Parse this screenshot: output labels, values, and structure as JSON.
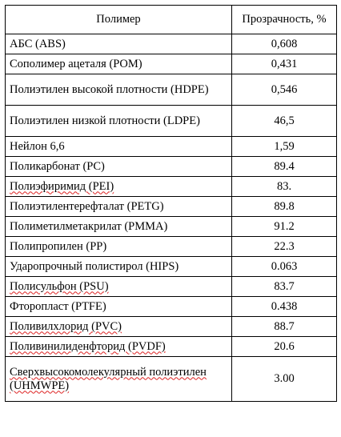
{
  "table": {
    "headers": {
      "name": "Полимер",
      "value": "Прозрачность, %"
    },
    "rows": [
      {
        "name": "АБС (ABS)",
        "value": "0,608"
      },
      {
        "name": "Сополимер ацеталя (POM)",
        "value": "0,431"
      },
      {
        "name": "Полиэтилен высокой плотности (HDPE)",
        "value": "0,546"
      },
      {
        "name": "Полиэтилен низкой плотности (LDPE)",
        "value": "46,5"
      },
      {
        "name": "Нейлон 6,6",
        "value": "1,59"
      },
      {
        "name": "Поликарбонат (PC)",
        "value": "89.4"
      },
      {
        "name": "Полиэфиримид (PEI)",
        "value": "83."
      },
      {
        "name": "Полиэтилентерефталат (PETG)",
        "value": "89.8"
      },
      {
        "name": "Полиметилметакрилат (PMMA)",
        "value": "91.2"
      },
      {
        "name": "Полипропилен (PP)",
        "value": "22.3"
      },
      {
        "name": "Ударопрочный полистирол (HIPS)",
        "value": "0.063"
      },
      {
        "name": "Полисульфон (PSU)",
        "value": "83.7"
      },
      {
        "name": "Фторопласт (PTFE)",
        "value": "0.438"
      },
      {
        "name": "Поливилхлорид (PVC)",
        "value": "88.7"
      },
      {
        "name": "Поливинилиденфторид (PVDF)",
        "value": "20.6"
      },
      {
        "name": "Сверхвысокомолекулярный полиэтилен (UHMWPE)",
        "value": "3.00"
      }
    ]
  }
}
